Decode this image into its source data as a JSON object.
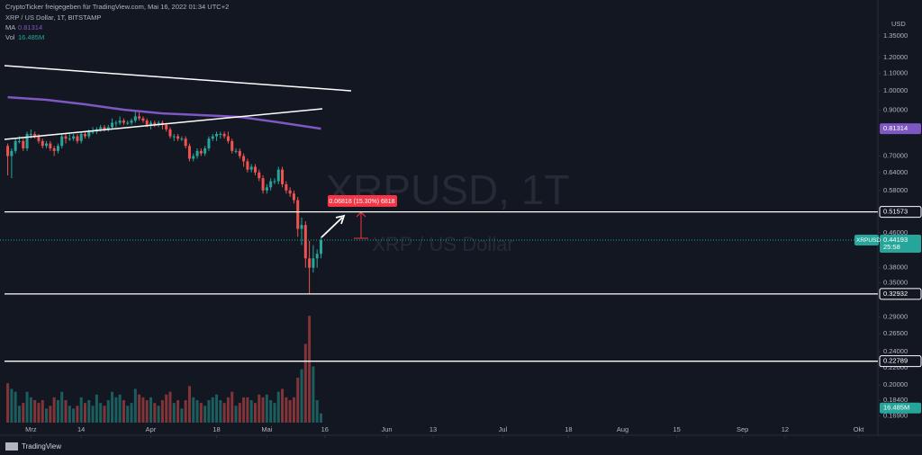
{
  "header": {
    "attribution": "CryptoTicker freigegeben für TradingView.com, Mai 16, 2022 01:34 UTC+2",
    "symbol": "XRP / US Dollar, 1T, BITSTAMP",
    "ma_label": "MA",
    "ma_value": "0.81314",
    "vol_label": "Vol",
    "vol_value": "16.485M"
  },
  "watermark": {
    "symbol": "XRPUSD, 1T",
    "name": "XRP / US Dollar"
  },
  "annotation": "0.06818 (15.30%) 6818",
  "logo": "TradingView",
  "chart_data": {
    "type": "candlestick",
    "currency": "USD",
    "log_scale": true,
    "ylim": [
      0.152,
      1.644
    ],
    "yticks": [
      {
        "value": 1.35,
        "label": "1.35000"
      },
      {
        "value": 1.2,
        "label": "1.20000"
      },
      {
        "value": 1.1,
        "label": "1.10000"
      },
      {
        "value": 1,
        "label": "1.00000"
      },
      {
        "value": 0.9,
        "label": "0.90000"
      },
      {
        "value": 0.7,
        "label": "0.70000"
      },
      {
        "value": 0.64,
        "label": "0.64000"
      },
      {
        "value": 0.58,
        "label": "0.58000"
      },
      {
        "value": 0.46,
        "label": "0.46000"
      },
      {
        "value": 0.38,
        "label": "0.38000"
      },
      {
        "value": 0.35,
        "label": "0.35000"
      },
      {
        "value": 0.29,
        "label": "0.29000"
      },
      {
        "value": 0.265,
        "label": "0.26500"
      },
      {
        "value": 0.24,
        "label": "0.24000"
      },
      {
        "value": 0.22,
        "label": "0.22000"
      },
      {
        "value": 0.2,
        "label": "0.20000"
      },
      {
        "value": 0.184,
        "label": "0.18400"
      },
      {
        "value": 0.169,
        "label": "0.16900"
      }
    ],
    "xlim": [
      "02-21",
      "10-06"
    ],
    "xticks": [
      {
        "value": "03-01",
        "label": "Mrz"
      },
      {
        "value": "03-14",
        "label": "14"
      },
      {
        "value": "04-01",
        "label": "Apr"
      },
      {
        "value": "04-18",
        "label": "18"
      },
      {
        "value": "05-01",
        "label": "Mai"
      },
      {
        "value": "05-16",
        "label": "16"
      },
      {
        "value": "06-01",
        "label": "Jun"
      },
      {
        "value": "06-13",
        "label": "13"
      },
      {
        "value": "07-01",
        "label": "Jul"
      },
      {
        "value": "07-18",
        "label": "18"
      },
      {
        "value": "08-01",
        "label": "Aug"
      },
      {
        "value": "08-15",
        "label": "15"
      },
      {
        "value": "09-01",
        "label": "Sep"
      },
      {
        "value": "09-12",
        "label": "12"
      },
      {
        "value": "10-01",
        "label": "Okt"
      }
    ],
    "up_color": "#26a69a",
    "down_color": "#ef5350",
    "x": [
      "02-23",
      "02-24",
      "02-25",
      "02-26",
      "02-27",
      "02-28",
      "03-01",
      "03-02",
      "03-03",
      "03-04",
      "03-05",
      "03-06",
      "03-07",
      "03-08",
      "03-09",
      "03-10",
      "03-11",
      "03-12",
      "03-13",
      "03-14",
      "03-15",
      "03-16",
      "03-17",
      "03-18",
      "03-19",
      "03-20",
      "03-21",
      "03-22",
      "03-23",
      "03-24",
      "03-25",
      "03-26",
      "03-27",
      "03-28",
      "03-29",
      "03-30",
      "03-31",
      "04-01",
      "04-02",
      "04-03",
      "04-04",
      "04-05",
      "04-06",
      "04-07",
      "04-08",
      "04-09",
      "04-10",
      "04-11",
      "04-12",
      "04-13",
      "04-14",
      "04-15",
      "04-16",
      "04-17",
      "04-18",
      "04-19",
      "04-20",
      "04-21",
      "04-22",
      "04-23",
      "04-24",
      "04-25",
      "04-26",
      "04-27",
      "04-28",
      "04-29",
      "04-30",
      "05-01",
      "05-02",
      "05-03",
      "05-04",
      "05-05",
      "05-06",
      "05-07",
      "05-08",
      "05-09",
      "05-10",
      "05-11",
      "05-12",
      "05-13",
      "05-14",
      "05-15"
    ],
    "ohlc": [
      [
        0.74,
        0.75,
        0.63,
        0.7
      ],
      [
        0.7,
        0.73,
        0.62,
        0.72
      ],
      [
        0.72,
        0.77,
        0.71,
        0.76
      ],
      [
        0.76,
        0.78,
        0.75,
        0.76
      ],
      [
        0.76,
        0.77,
        0.72,
        0.73
      ],
      [
        0.73,
        0.8,
        0.72,
        0.79
      ],
      [
        0.79,
        0.81,
        0.77,
        0.79
      ],
      [
        0.79,
        0.8,
        0.77,
        0.78
      ],
      [
        0.78,
        0.79,
        0.75,
        0.76
      ],
      [
        0.76,
        0.77,
        0.73,
        0.74
      ],
      [
        0.74,
        0.76,
        0.73,
        0.75
      ],
      [
        0.75,
        0.76,
        0.72,
        0.73
      ],
      [
        0.73,
        0.74,
        0.7,
        0.72
      ],
      [
        0.72,
        0.75,
        0.71,
        0.74
      ],
      [
        0.74,
        0.79,
        0.73,
        0.78
      ],
      [
        0.78,
        0.79,
        0.75,
        0.77
      ],
      [
        0.77,
        0.79,
        0.76,
        0.77
      ],
      [
        0.77,
        0.79,
        0.76,
        0.78
      ],
      [
        0.78,
        0.79,
        0.75,
        0.76
      ],
      [
        0.76,
        0.8,
        0.75,
        0.79
      ],
      [
        0.79,
        0.8,
        0.77,
        0.78
      ],
      [
        0.78,
        0.81,
        0.77,
        0.8
      ],
      [
        0.8,
        0.82,
        0.79,
        0.8
      ],
      [
        0.8,
        0.82,
        0.79,
        0.81
      ],
      [
        0.81,
        0.83,
        0.8,
        0.82
      ],
      [
        0.82,
        0.83,
        0.8,
        0.81
      ],
      [
        0.81,
        0.83,
        0.8,
        0.82
      ],
      [
        0.82,
        0.86,
        0.81,
        0.84
      ],
      [
        0.84,
        0.85,
        0.82,
        0.84
      ],
      [
        0.84,
        0.87,
        0.83,
        0.85
      ],
      [
        0.85,
        0.86,
        0.83,
        0.84
      ],
      [
        0.84,
        0.85,
        0.83,
        0.84
      ],
      [
        0.84,
        0.86,
        0.83,
        0.85
      ],
      [
        0.85,
        0.9,
        0.84,
        0.87
      ],
      [
        0.87,
        0.89,
        0.85,
        0.86
      ],
      [
        0.86,
        0.87,
        0.84,
        0.85
      ],
      [
        0.85,
        0.86,
        0.82,
        0.83
      ],
      [
        0.83,
        0.85,
        0.81,
        0.84
      ],
      [
        0.84,
        0.85,
        0.82,
        0.83
      ],
      [
        0.83,
        0.85,
        0.82,
        0.84
      ],
      [
        0.84,
        0.85,
        0.81,
        0.83
      ],
      [
        0.83,
        0.84,
        0.8,
        0.81
      ],
      [
        0.81,
        0.82,
        0.77,
        0.78
      ],
      [
        0.78,
        0.79,
        0.76,
        0.78
      ],
      [
        0.78,
        0.79,
        0.76,
        0.77
      ],
      [
        0.77,
        0.78,
        0.76,
        0.77
      ],
      [
        0.77,
        0.78,
        0.73,
        0.74
      ],
      [
        0.74,
        0.75,
        0.68,
        0.69
      ],
      [
        0.69,
        0.71,
        0.68,
        0.7
      ],
      [
        0.7,
        0.73,
        0.69,
        0.72
      ],
      [
        0.72,
        0.73,
        0.7,
        0.71
      ],
      [
        0.71,
        0.74,
        0.7,
        0.73
      ],
      [
        0.73,
        0.78,
        0.72,
        0.77
      ],
      [
        0.77,
        0.79,
        0.76,
        0.78
      ],
      [
        0.78,
        0.8,
        0.76,
        0.79
      ],
      [
        0.79,
        0.8,
        0.77,
        0.79
      ],
      [
        0.79,
        0.8,
        0.77,
        0.78
      ],
      [
        0.78,
        0.8,
        0.75,
        0.76
      ],
      [
        0.76,
        0.77,
        0.71,
        0.72
      ],
      [
        0.72,
        0.73,
        0.71,
        0.72
      ],
      [
        0.72,
        0.73,
        0.69,
        0.7
      ],
      [
        0.7,
        0.71,
        0.66,
        0.68
      ],
      [
        0.68,
        0.69,
        0.64,
        0.65
      ],
      [
        0.65,
        0.67,
        0.64,
        0.66
      ],
      [
        0.66,
        0.67,
        0.63,
        0.64
      ],
      [
        0.64,
        0.65,
        0.61,
        0.62
      ],
      [
        0.62,
        0.63,
        0.57,
        0.58
      ],
      [
        0.58,
        0.6,
        0.57,
        0.59
      ],
      [
        0.59,
        0.62,
        0.58,
        0.61
      ],
      [
        0.61,
        0.62,
        0.6,
        0.61
      ],
      [
        0.61,
        0.66,
        0.6,
        0.65
      ],
      [
        0.65,
        0.66,
        0.59,
        0.6
      ],
      [
        0.6,
        0.61,
        0.57,
        0.58
      ],
      [
        0.58,
        0.59,
        0.56,
        0.57
      ],
      [
        0.57,
        0.58,
        0.54,
        0.55
      ],
      [
        0.55,
        0.56,
        0.45,
        0.47
      ],
      [
        0.47,
        0.5,
        0.43,
        0.48
      ],
      [
        0.48,
        0.49,
        0.38,
        0.4
      ],
      [
        0.4,
        0.44,
        0.33,
        0.38
      ],
      [
        0.38,
        0.43,
        0.37,
        0.4
      ],
      [
        0.4,
        0.42,
        0.38,
        0.41
      ],
      [
        0.41,
        0.45,
        0.4,
        0.44193
      ]
    ],
    "volume": {
      "vlim": [
        0,
        200
      ],
      "values": [
        70,
        60,
        55,
        30,
        35,
        55,
        45,
        40,
        35,
        40,
        25,
        30,
        45,
        40,
        55,
        40,
        30,
        25,
        30,
        45,
        35,
        40,
        30,
        50,
        35,
        30,
        40,
        55,
        45,
        50,
        40,
        30,
        35,
        60,
        50,
        45,
        40,
        45,
        35,
        30,
        40,
        50,
        55,
        35,
        40,
        25,
        40,
        65,
        45,
        40,
        35,
        30,
        40,
        45,
        50,
        40,
        35,
        45,
        55,
        30,
        35,
        45,
        45,
        40,
        35,
        50,
        45,
        50,
        40,
        35,
        55,
        60,
        45,
        40,
        45,
        80,
        95,
        140,
        190,
        100,
        40,
        16.485
      ]
    },
    "ma": {
      "name": "MA",
      "color": "#7e57c2",
      "x": [
        "02-23",
        "03-05",
        "03-15",
        "03-25",
        "04-04",
        "04-14",
        "04-24",
        "05-04",
        "05-15"
      ],
      "values": [
        0.966,
        0.952,
        0.929,
        0.902,
        0.884,
        0.876,
        0.867,
        0.842,
        0.81314
      ]
    },
    "levels": [
      {
        "value": 0.51573,
        "label": "0.51573"
      },
      {
        "value": 0.32932,
        "label": "0.32932"
      },
      {
        "value": 0.22789,
        "label": "0.22789"
      }
    ],
    "last_price": {
      "symbol": "XRPUSD",
      "value": 0.44193,
      "label": "0.44193",
      "countdown": "25:58"
    }
  }
}
